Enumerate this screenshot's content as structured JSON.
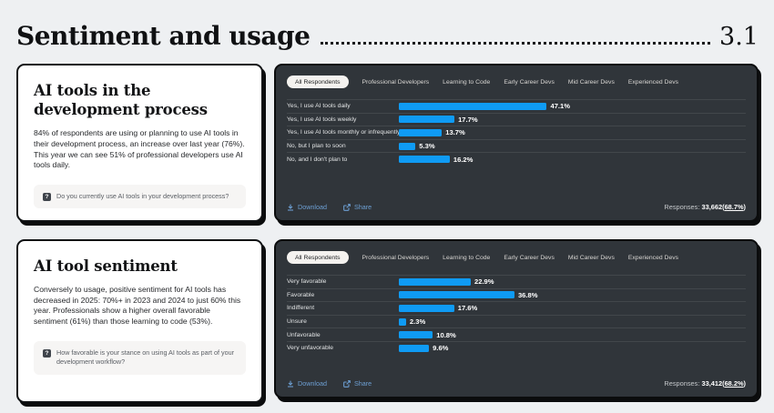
{
  "header": {
    "title": "Sentiment and usage",
    "section": "3.1"
  },
  "tokens": {
    "paren_open": "(",
    "paren_close": ")"
  },
  "info_cards": {
    "usage": {
      "title": "AI tools in the development process",
      "body": "84% of respondents are using or planning to use AI tools in their development process, an increase over last year (76%). This year we can see 51% of professional developers use AI tools daily.",
      "question": "Do you currently use AI tools in your development process?",
      "question_icon": "?"
    },
    "sentiment": {
      "title": "AI tool sentiment",
      "body": "Conversely to usage, positive sentiment for AI tools has decreased in 2025: 70%+ in 2023 and 2024 to just 60% this year. Professionals show a higher overall favorable sentiment (61%) than those learning to code (53%).",
      "question": "How favorable is your stance on using AI tools as part of your development workflow?",
      "question_icon": "?"
    }
  },
  "tabs": {
    "items": [
      "All Respondents",
      "Professional Developers",
      "Learning to Code",
      "Early Career Devs",
      "Mid Career Devs",
      "Experienced Devs"
    ],
    "active_index": 0
  },
  "footer_labels": {
    "download": "Download",
    "share": "Share",
    "responses": "Responses:"
  },
  "colors": {
    "page_bg": "#eef0f2",
    "card_dark_bg": "#30353a",
    "bar_blue": "#0f9bf4",
    "link_blue": "#6d9fd3",
    "active_pill_bg": "#f4f2ef"
  },
  "chart_data": [
    {
      "type": "bar",
      "orientation": "horizontal",
      "question": "Do you currently use AI tools in your development process?",
      "categories": [
        "Yes, I use AI tools daily",
        "Yes, I use AI tools weekly",
        "Yes, I use AI tools monthly or infrequently",
        "No, but I plan to soon",
        "No, and I don't plan to"
      ],
      "values": [
        47.1,
        17.7,
        13.7,
        5.3,
        16.2
      ],
      "unit": "%",
      "xlim": [
        0,
        100
      ],
      "grid": "row-separators",
      "legend": "none",
      "responses": "33,662",
      "responses_pct": "68.7%"
    },
    {
      "type": "bar",
      "orientation": "horizontal",
      "question": "How favorable is your stance on using AI tools as part of your development workflow?",
      "categories": [
        "Very favorable",
        "Favorable",
        "Indifferent",
        "Unsure",
        "Unfavorable",
        "Very unfavorable"
      ],
      "values": [
        22.9,
        36.8,
        17.6,
        2.3,
        10.8,
        9.6
      ],
      "unit": "%",
      "xlim": [
        0,
        100
      ],
      "grid": "row-separators",
      "legend": "none",
      "responses": "33,412",
      "responses_pct": "68.2%"
    }
  ]
}
